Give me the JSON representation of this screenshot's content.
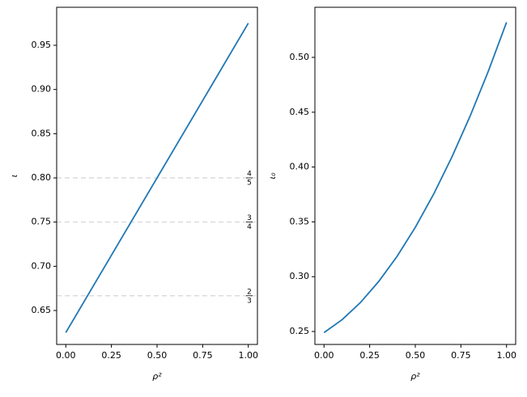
{
  "chart_data": [
    {
      "type": "line",
      "xlabel": "ρ²",
      "ylabel": "ι",
      "x": [
        0,
        1
      ],
      "series": [
        {
          "color": "#1f77b4",
          "values": [
            0.625,
            0.975
          ]
        }
      ],
      "xlim": [
        -0.05,
        1.05
      ],
      "ylim": [
        0.6116,
        0.993
      ],
      "xticks": [
        {
          "value": 0,
          "label": "0.00"
        },
        0.25,
        {
          "value": 0.5,
          "label": "0.50"
        },
        0.75,
        {
          "value": 1,
          "label": "1.00"
        }
      ],
      "yticks": [
        0.65,
        {
          "value": 0.7,
          "label": "0.70"
        },
        0.75,
        {
          "value": 0.8,
          "label": "0.80"
        },
        0.85,
        {
          "value": 0.9,
          "label": "0.90"
        },
        0.95
      ],
      "hlines": [
        {
          "value": 0.6666666666666666,
          "num": "2",
          "den": "3"
        },
        {
          "value": 0.75,
          "num": "3",
          "den": "4"
        },
        {
          "value": 0.8,
          "num": "4",
          "den": "5"
        }
      ]
    },
    {
      "type": "line",
      "xlabel": "ρ²",
      "ylabel": "ι₀",
      "x": [
        0,
        0.1,
        0.2,
        0.3,
        0.4,
        0.5,
        0.6,
        0.7,
        0.8,
        0.9,
        1
      ],
      "series": [
        {
          "color": "#1f77b4",
          "values": [
            0.249,
            0.2609,
            0.2765,
            0.2957,
            0.3185,
            0.345,
            0.3751,
            0.4089,
            0.4463,
            0.4873,
            0.532
          ]
        }
      ],
      "xlim": [
        -0.05,
        1.05
      ],
      "ylim": [
        0.2382,
        0.5457
      ],
      "xticks": [
        {
          "value": 0,
          "label": "0.00"
        },
        0.25,
        {
          "value": 0.5,
          "label": "0.50"
        },
        0.75,
        {
          "value": 1,
          "label": "1.00"
        }
      ],
      "yticks": [
        0.25,
        {
          "value": 0.3,
          "label": "0.30"
        },
        0.35,
        {
          "value": 0.4,
          "label": "0.40"
        },
        0.45,
        {
          "value": 0.5,
          "label": "0.50"
        }
      ]
    }
  ]
}
